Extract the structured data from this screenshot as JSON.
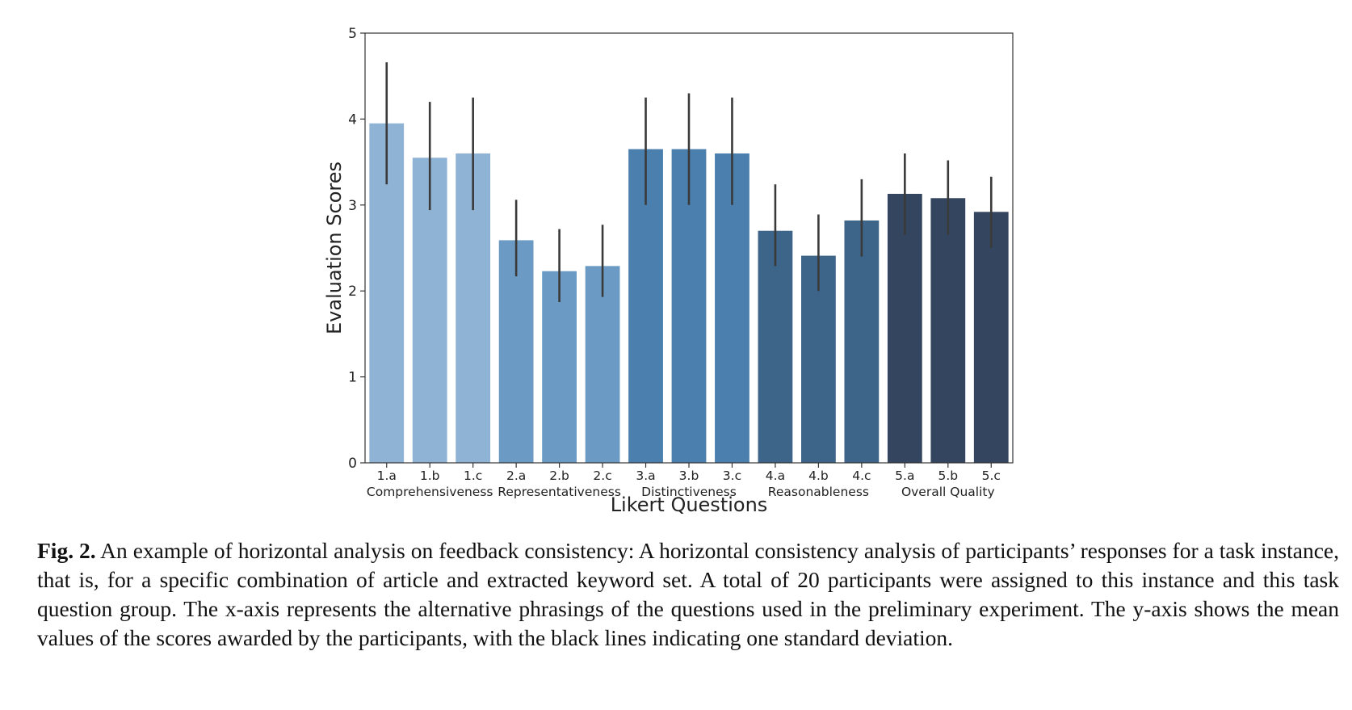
{
  "chart_data": {
    "type": "bar",
    "xlabel": "Likert Questions",
    "ylabel": "Evaluation Scores",
    "ylim": [
      0,
      5
    ],
    "yticks": [
      0,
      1,
      2,
      3,
      4,
      5
    ],
    "grid": false,
    "categories": [
      "1.a",
      "1.b",
      "1.c",
      "2.a",
      "2.b",
      "2.c",
      "3.a",
      "3.b",
      "3.c",
      "4.a",
      "4.b",
      "4.c",
      "5.a",
      "5.b",
      "5.c"
    ],
    "values": [
      3.95,
      3.55,
      3.6,
      2.59,
      2.23,
      2.29,
      3.65,
      3.65,
      3.6,
      2.7,
      2.41,
      2.82,
      3.13,
      3.08,
      2.92
    ],
    "error_low": [
      3.24,
      2.94,
      2.94,
      2.17,
      1.87,
      1.93,
      3.0,
      3.0,
      3.0,
      2.29,
      2.0,
      2.4,
      2.65,
      2.65,
      2.5
    ],
    "error_high": [
      4.66,
      4.2,
      4.25,
      3.06,
      2.72,
      2.77,
      4.25,
      4.3,
      4.25,
      3.24,
      2.89,
      3.3,
      3.6,
      3.52,
      3.33
    ],
    "groups": [
      {
        "label": "Comprehensiveness",
        "categories": [
          "1.a",
          "1.b",
          "1.c"
        ]
      },
      {
        "label": "Representativeness",
        "categories": [
          "2.a",
          "2.b",
          "2.c"
        ]
      },
      {
        "label": "Distinctiveness",
        "categories": [
          "3.a",
          "3.b",
          "3.c"
        ]
      },
      {
        "label": "Reasonableness",
        "categories": [
          "4.a",
          "4.b",
          "4.c"
        ]
      },
      {
        "label": "Overall Quality",
        "categories": [
          "5.a",
          "5.b",
          "5.c"
        ]
      }
    ],
    "colors": [
      "#8fb3d4",
      "#8fb3d4",
      "#8fb3d4",
      "#6b9bc4",
      "#6b9bc4",
      "#6b9bc4",
      "#4a7fae",
      "#4a7fae",
      "#4a7fae",
      "#3d6489",
      "#3d6489",
      "#3d6489",
      "#34465f",
      "#34465f",
      "#34465f"
    ]
  },
  "caption": {
    "label": "Fig. 2.",
    "text": "An example of horizontal analysis on feedback consistency: A horizontal consistency analysis of participants’ responses for a task instance, that is, for a specific combination of article and extracted keyword set. A total of 20 participants were assigned to this instance and this task question group. The x-axis represents the alternative phrasings of the questions used in the preliminary experiment. The y-axis shows the mean values of the scores awarded by the participants, with the black lines indicating one standard deviation."
  }
}
